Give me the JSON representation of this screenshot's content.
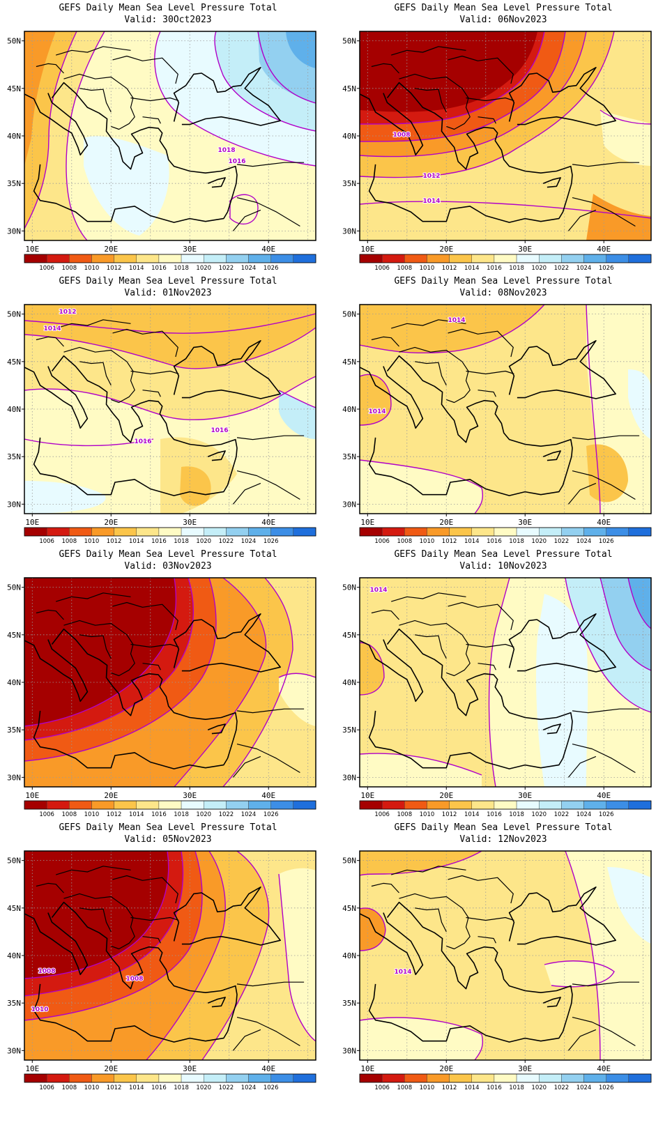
{
  "figure": {
    "title_prefix": "GEFS Daily Mean Sea Level Pressure Total",
    "valid_prefix": "Valid:"
  },
  "map": {
    "lon_ticks": [
      "10E",
      "20E",
      "30E",
      "40E"
    ],
    "lat_ticks": [
      "50N",
      "45N",
      "40N",
      "35N",
      "30N"
    ],
    "grid": "dotted",
    "projection": "lat-lon",
    "region": "Europe / Mediterranean / Balkans / Turkey"
  },
  "colorbar": {
    "labels": [
      "1006",
      "1008",
      "1010",
      "1012",
      "1014",
      "1016",
      "1018",
      "1020",
      "1022",
      "1024",
      "1026"
    ],
    "colors": [
      "#a50000",
      "#d41a10",
      "#f05a14",
      "#f99a28",
      "#fbc54a",
      "#fde68a",
      "#fffbc4",
      "#e8fbff",
      "#c4eef8",
      "#93d0f0",
      "#5fb0ea",
      "#3c8ee6",
      "#1f6fdc"
    ]
  },
  "contour_color": "#b000c8",
  "panels": [
    {
      "valid": "Valid: 30Oct2023",
      "contour_labels": [
        "1018",
        "1016"
      ]
    },
    {
      "valid": "Valid: 06Nov2023",
      "contour_labels": [
        "1008",
        "1012",
        "1014"
      ]
    },
    {
      "valid": "Valid: 01Nov2023",
      "contour_labels": [
        "1012",
        "1014",
        "1016",
        "1016"
      ]
    },
    {
      "valid": "Valid: 08Nov2023",
      "contour_labels": [
        "1014",
        "1014"
      ]
    },
    {
      "valid": "Valid: 03Nov2023",
      "contour_labels": []
    },
    {
      "valid": "Valid: 10Nov2023",
      "contour_labels": [
        "1014"
      ]
    },
    {
      "valid": "Valid: 05Nov2023",
      "contour_labels": [
        "1008",
        "1008",
        "1010"
      ]
    },
    {
      "valid": "Valid: 12Nov2023",
      "contour_labels": [
        "1014"
      ]
    }
  ]
}
